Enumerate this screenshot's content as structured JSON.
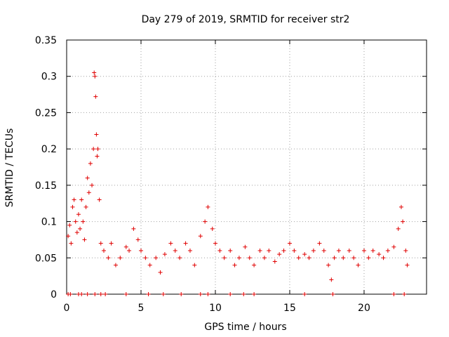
{
  "chart_data": {
    "type": "scatter",
    "title": "Day 279 of 2019, SRMTID for receiver str2",
    "xlabel": "GPS time / hours",
    "ylabel": "SRMTID / TECUs",
    "xlim": [
      0,
      24.2
    ],
    "ylim": [
      0,
      0.35
    ],
    "xticks": [
      0,
      5,
      10,
      15,
      20
    ],
    "xtick_labels": [
      "0",
      "5",
      "10",
      "15",
      "20"
    ],
    "yticks": [
      0,
      0.05,
      0.1,
      0.15,
      0.2,
      0.25,
      0.3,
      0.35
    ],
    "ytick_labels": [
      "0",
      "0.05",
      "0.1",
      "0.15",
      "0.2",
      "0.25",
      "0.3",
      "0.35"
    ],
    "grid": true,
    "marker": "+",
    "marker_color": "#e00000",
    "series": [
      {
        "name": "str2",
        "points": [
          [
            0.1,
            0.08
          ],
          [
            0.2,
            0.095
          ],
          [
            0.3,
            0.07
          ],
          [
            0.4,
            0.12
          ],
          [
            0.5,
            0.13
          ],
          [
            0.6,
            0.1
          ],
          [
            0.7,
            0.085
          ],
          [
            0.8,
            0.11
          ],
          [
            0.9,
            0.09
          ],
          [
            1.0,
            0.13
          ],
          [
            1.1,
            0.1
          ],
          [
            1.2,
            0.075
          ],
          [
            1.3,
            0.12
          ],
          [
            1.4,
            0.16
          ],
          [
            1.5,
            0.14
          ],
          [
            1.6,
            0.18
          ],
          [
            1.7,
            0.15
          ],
          [
            1.8,
            0.2
          ],
          [
            1.85,
            0.305
          ],
          [
            1.9,
            0.3
          ],
          [
            1.95,
            0.272
          ],
          [
            2.0,
            0.22
          ],
          [
            2.05,
            0.19
          ],
          [
            2.1,
            0.2
          ],
          [
            2.2,
            0.13
          ],
          [
            2.3,
            0.07
          ],
          [
            2.5,
            0.06
          ],
          [
            2.8,
            0.05
          ],
          [
            3.0,
            0.07
          ],
          [
            3.3,
            0.04
          ],
          [
            3.6,
            0.05
          ],
          [
            4.0,
            0.065
          ],
          [
            4.2,
            0.06
          ],
          [
            4.5,
            0.09
          ],
          [
            4.8,
            0.075
          ],
          [
            5.0,
            0.06
          ],
          [
            5.3,
            0.05
          ],
          [
            5.6,
            0.04
          ],
          [
            6.0,
            0.05
          ],
          [
            6.3,
            0.03
          ],
          [
            6.6,
            0.055
          ],
          [
            7.0,
            0.07
          ],
          [
            7.3,
            0.06
          ],
          [
            7.6,
            0.05
          ],
          [
            8.0,
            0.07
          ],
          [
            8.3,
            0.06
          ],
          [
            8.6,
            0.04
          ],
          [
            9.0,
            0.08
          ],
          [
            9.3,
            0.1
          ],
          [
            9.5,
            0.12
          ],
          [
            9.8,
            0.09
          ],
          [
            10.0,
            0.07
          ],
          [
            10.3,
            0.06
          ],
          [
            10.6,
            0.05
          ],
          [
            11.0,
            0.06
          ],
          [
            11.3,
            0.04
          ],
          [
            11.6,
            0.05
          ],
          [
            12.0,
            0.065
          ],
          [
            12.3,
            0.05
          ],
          [
            12.6,
            0.04
          ],
          [
            13.0,
            0.06
          ],
          [
            13.3,
            0.05
          ],
          [
            13.6,
            0.06
          ],
          [
            14.0,
            0.045
          ],
          [
            14.3,
            0.055
          ],
          [
            14.6,
            0.06
          ],
          [
            15.0,
            0.07
          ],
          [
            15.3,
            0.06
          ],
          [
            15.6,
            0.05
          ],
          [
            16.0,
            0.055
          ],
          [
            16.3,
            0.05
          ],
          [
            16.6,
            0.06
          ],
          [
            17.0,
            0.07
          ],
          [
            17.3,
            0.06
          ],
          [
            17.6,
            0.04
          ],
          [
            17.8,
            0.02
          ],
          [
            18.0,
            0.05
          ],
          [
            18.3,
            0.06
          ],
          [
            18.6,
            0.05
          ],
          [
            19.0,
            0.06
          ],
          [
            19.3,
            0.05
          ],
          [
            19.6,
            0.04
          ],
          [
            20.0,
            0.06
          ],
          [
            20.3,
            0.05
          ],
          [
            20.6,
            0.06
          ],
          [
            21.0,
            0.055
          ],
          [
            21.3,
            0.05
          ],
          [
            21.6,
            0.06
          ],
          [
            22.0,
            0.065
          ],
          [
            22.3,
            0.09
          ],
          [
            22.5,
            0.12
          ],
          [
            22.6,
            0.1
          ],
          [
            22.8,
            0.06
          ],
          [
            22.9,
            0.04
          ]
        ],
        "zero_x": [
          0.1,
          0.25,
          0.8,
          1.0,
          1.4,
          1.9,
          2.3,
          2.6,
          4.0,
          5.5,
          6.5,
          7.7,
          9.0,
          9.5,
          11.0,
          11.9,
          12.6,
          16.0,
          17.9,
          22.0,
          22.7
        ]
      }
    ]
  }
}
